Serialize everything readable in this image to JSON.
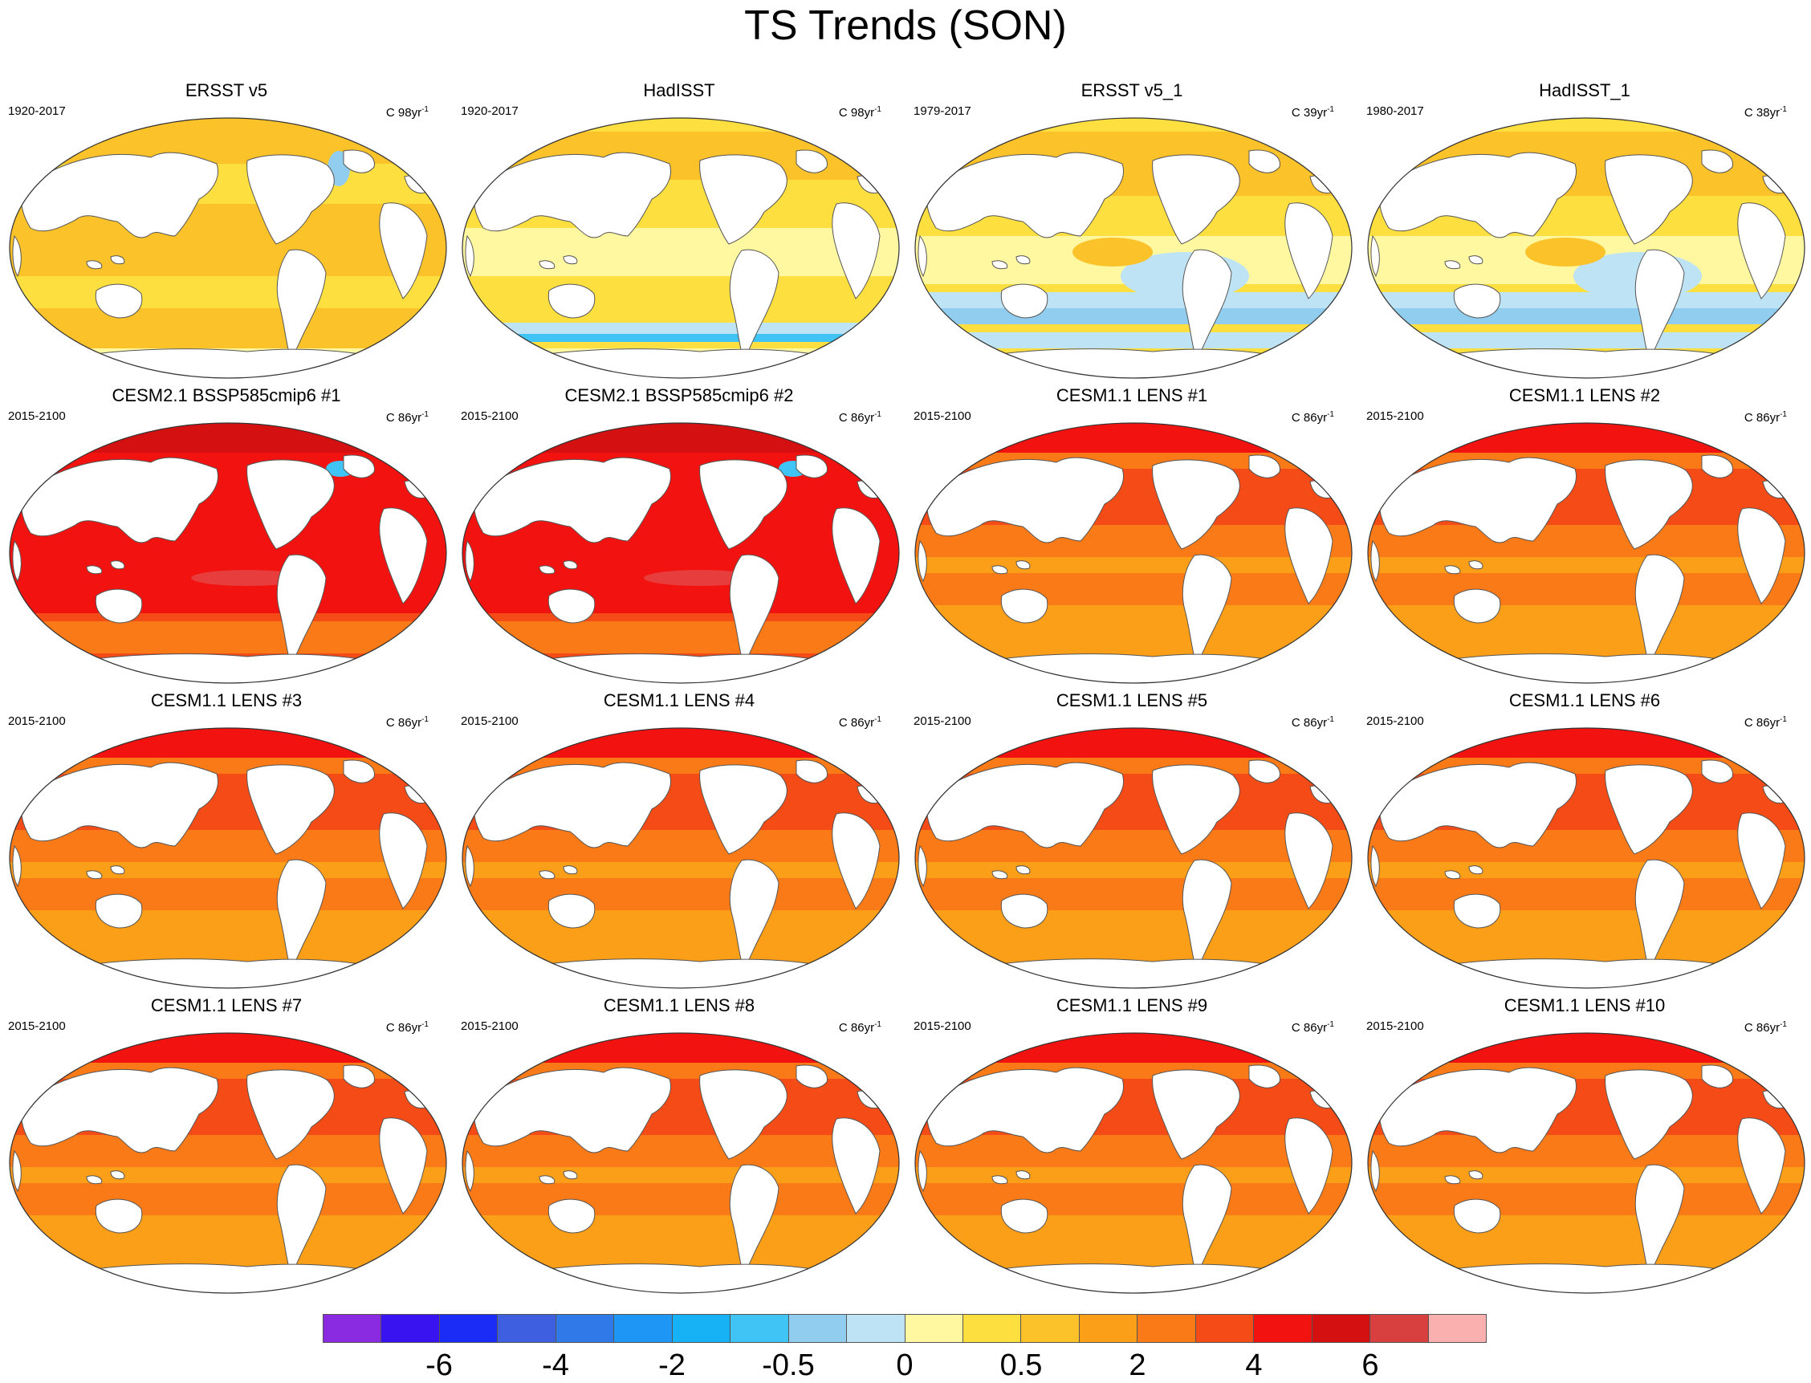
{
  "title": "TS Trends (SON)",
  "panels": [
    {
      "title": "ERSST v5",
      "period": "1920-2017",
      "units_base": "C 98yr",
      "units_exp": "-1",
      "pattern": "obs_warm"
    },
    {
      "title": "HadISST",
      "period": "1920-2017",
      "units_base": "C 98yr",
      "units_exp": "-1",
      "pattern": "obs_warm_south_cool"
    },
    {
      "title": "ERSST v5_1",
      "period": "1979-2017",
      "units_base": "C 39yr",
      "units_exp": "-1",
      "pattern": "obs_recent"
    },
    {
      "title": "HadISST_1",
      "period": "1980-2017",
      "units_base": "C 38yr",
      "units_exp": "-1",
      "pattern": "obs_recent"
    },
    {
      "title": "CESM2.1 BSSP585cmip6 #1",
      "period": "2015-2100",
      "units_base": "C 86yr",
      "units_exp": "-1",
      "pattern": "cesm2"
    },
    {
      "title": "CESM2.1 BSSP585cmip6 #2",
      "period": "2015-2100",
      "units_base": "C 86yr",
      "units_exp": "-1",
      "pattern": "cesm2"
    },
    {
      "title": "CESM1.1 LENS #1",
      "period": "2015-2100",
      "units_base": "C 86yr",
      "units_exp": "-1",
      "pattern": "lens"
    },
    {
      "title": "CESM1.1 LENS #2",
      "period": "2015-2100",
      "units_base": "C 86yr",
      "units_exp": "-1",
      "pattern": "lens"
    },
    {
      "title": "CESM1.1 LENS #3",
      "period": "2015-2100",
      "units_base": "C 86yr",
      "units_exp": "-1",
      "pattern": "lens"
    },
    {
      "title": "CESM1.1 LENS #4",
      "period": "2015-2100",
      "units_base": "C 86yr",
      "units_exp": "-1",
      "pattern": "lens"
    },
    {
      "title": "CESM1.1 LENS #5",
      "period": "2015-2100",
      "units_base": "C 86yr",
      "units_exp": "-1",
      "pattern": "lens"
    },
    {
      "title": "CESM1.1 LENS #6",
      "period": "2015-2100",
      "units_base": "C 86yr",
      "units_exp": "-1",
      "pattern": "lens"
    },
    {
      "title": "CESM1.1 LENS #7",
      "period": "2015-2100",
      "units_base": "C 86yr",
      "units_exp": "-1",
      "pattern": "lens"
    },
    {
      "title": "CESM1.1 LENS #8",
      "period": "2015-2100",
      "units_base": "C 86yr",
      "units_exp": "-1",
      "pattern": "lens"
    },
    {
      "title": "CESM1.1 LENS #9",
      "period": "2015-2100",
      "units_base": "C 86yr",
      "units_exp": "-1",
      "pattern": "lens"
    },
    {
      "title": "CESM1.1 LENS #10",
      "period": "2015-2100",
      "units_base": "C 86yr",
      "units_exp": "-1",
      "pattern": "lens"
    }
  ],
  "colorbar": {
    "colors": [
      "#8a2be2",
      "#3a14f0",
      "#1a2cf5",
      "#3d5fe0",
      "#2f7ae8",
      "#1e96f5",
      "#16b2f5",
      "#40c3f5",
      "#90cdee",
      "#bde3f5",
      "#fff8a0",
      "#fde040",
      "#fcc22a",
      "#fb9e18",
      "#fa7a18",
      "#f54b16",
      "#f21310",
      "#d41010",
      "#d84040",
      "#fbb0b0"
    ],
    "tick_labels": [
      "-6",
      "-4",
      "-2",
      "-0.5",
      "0",
      "0.5",
      "2",
      "4",
      "6"
    ],
    "tick_after_index": [
      1,
      3,
      5,
      7,
      9,
      11,
      13,
      15,
      17
    ]
  },
  "palette": {
    "land": "#ffffff",
    "coast": "#555555",
    "obs_base": "#fcc22a",
    "obs_light": "#fde040",
    "obs_pale": "#fff8a0",
    "obs_cool": "#bde3f5",
    "obs_cool2": "#90cdee",
    "obs_blue": "#40c3f5",
    "lens_base": "#fb9e18",
    "lens_mid": "#fa7a18",
    "lens_high": "#f54b16",
    "lens_top": "#f21310",
    "cesm2_base": "#f54b16",
    "cesm2_high": "#f21310",
    "cesm2_top": "#d41010",
    "ice_pale": "#fff8a0",
    "ice_yellow": "#fde040"
  }
}
